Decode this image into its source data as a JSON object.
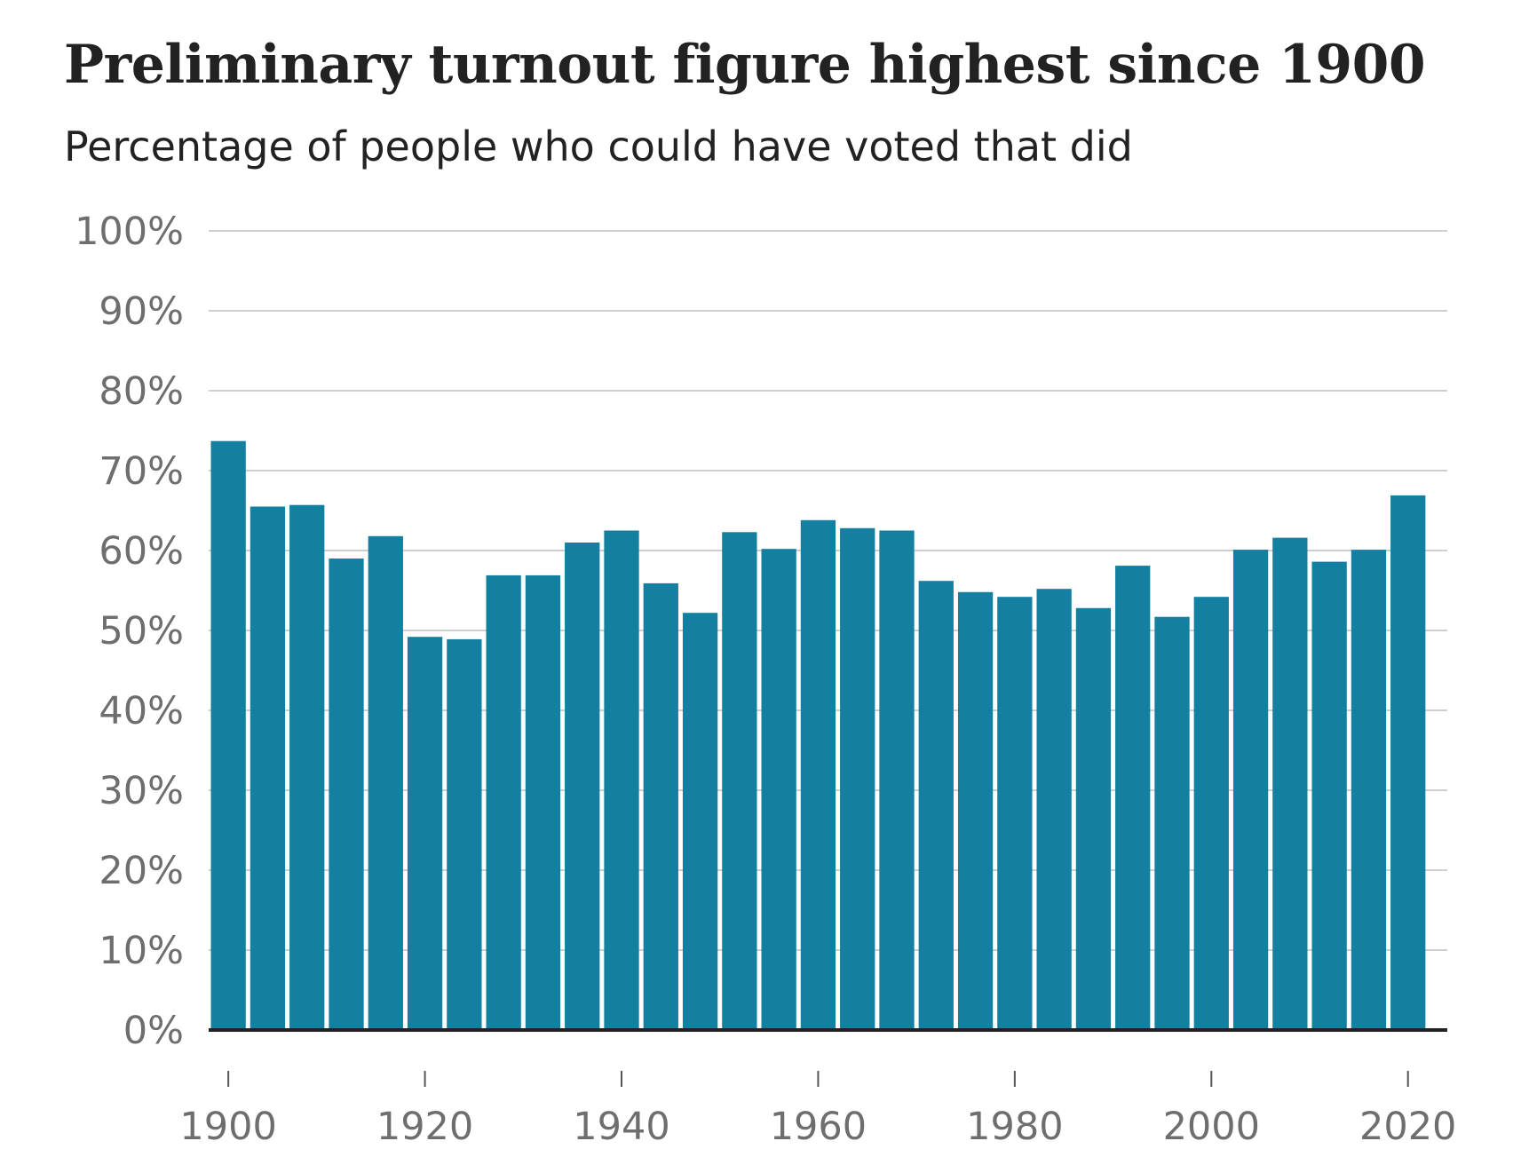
{
  "chart_data": {
    "type": "bar",
    "title": "Preliminary turnout figure highest since 1900",
    "subtitle": "Percentage of people who could have voted that did",
    "xlabel": "",
    "ylabel": "",
    "ylim": [
      0,
      100
    ],
    "xlim": [
      1898,
      2024
    ],
    "y_ticks": [
      0,
      10,
      20,
      30,
      40,
      50,
      60,
      70,
      80,
      90,
      100
    ],
    "y_tick_labels": [
      "0%",
      "10%",
      "20%",
      "30%",
      "40%",
      "50%",
      "60%",
      "70%",
      "80%",
      "90%",
      "100%"
    ],
    "x_ticks": [
      1900,
      1920,
      1940,
      1960,
      1980,
      2000,
      2020
    ],
    "x_tick_labels": [
      "1900",
      "1920",
      "1940",
      "1960",
      "1980",
      "2000",
      "2020"
    ],
    "grid": true,
    "bar_color": "#1380A1",
    "years": [
      1900,
      1904,
      1908,
      1912,
      1916,
      1920,
      1924,
      1928,
      1932,
      1936,
      1940,
      1944,
      1948,
      1952,
      1956,
      1960,
      1964,
      1968,
      1972,
      1976,
      1980,
      1984,
      1988,
      1992,
      1996,
      2000,
      2004,
      2008,
      2012,
      2016,
      2020
    ],
    "values": [
      73.7,
      65.5,
      65.7,
      59.0,
      61.8,
      49.2,
      48.9,
      56.9,
      56.9,
      61.0,
      62.5,
      55.9,
      52.2,
      62.3,
      60.2,
      63.8,
      62.8,
      62.5,
      56.2,
      54.8,
      54.2,
      55.2,
      52.8,
      58.1,
      51.7,
      54.2,
      60.1,
      61.6,
      58.6,
      60.1,
      66.9
    ]
  }
}
